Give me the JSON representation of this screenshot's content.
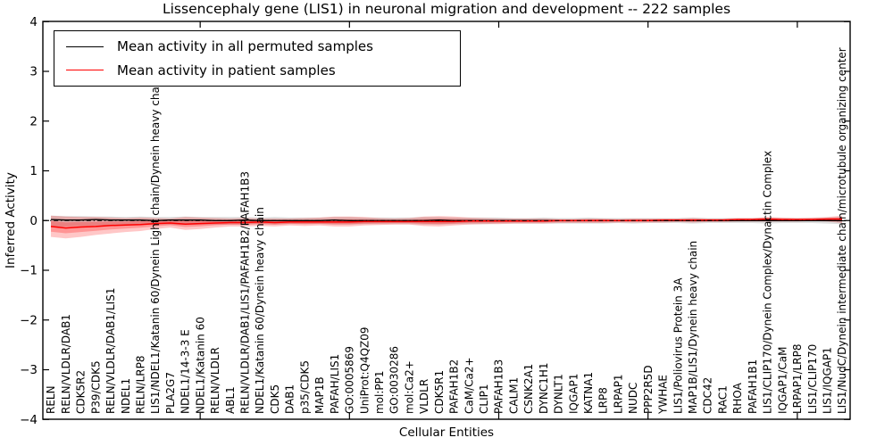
{
  "title": "Lissencephaly gene (LIS1) in neuronal migration and development -- 222 samples",
  "axes": {
    "x_label": "Cellular Entities",
    "y_label": "Inferred Activity",
    "y_ticks": [
      "4",
      "3",
      "2",
      "1",
      "0",
      "−1",
      "−2",
      "−3",
      "−4"
    ],
    "y_tick_values": [
      4,
      3,
      2,
      1,
      0,
      -1,
      -2,
      -3,
      -4
    ]
  },
  "legend": {
    "items": [
      {
        "label": "Mean activity in all permuted samples",
        "color": "#000000"
      },
      {
        "label": "Mean activity in patient samples",
        "color": "#ff0000"
      }
    ]
  },
  "colors": {
    "permuted_line": "#000000",
    "permuted_band": "#8a8a8a",
    "patient_line": "#ff0000",
    "patient_band": "#ff0000",
    "frame": "#000000",
    "zero_line": "#000000"
  },
  "chart_data": {
    "type": "line",
    "title": "Lissencephaly gene (LIS1) in neuronal migration and development -- 222 samples",
    "xlabel": "Cellular Entities",
    "ylabel": "Inferred Activity",
    "ylim": [
      -4,
      4
    ],
    "grid": false,
    "legend_position": "upper left",
    "zero_reference_line": 0,
    "top_axis_tick_indices": [
      10,
      20,
      30,
      40,
      50
    ],
    "categories": [
      "RELN",
      "RELN/VLDLR/DAB1",
      "CDK5R2",
      "P39/CDK5",
      "RELN/VLDLR/DAB1/LIS1",
      "NDEL1",
      "RELN/LRP8",
      "LIS1/NDEL1/Katanin 60/Dynein Light chain/Dynein heavy chain",
      "PLA2G7",
      "NDEL1/14-3-3 E",
      "NDEL1/Katanin 60",
      "RELN/VLDLR",
      "ABL1",
      "RELN/VLDLR/DAB1/LIS1/PAFAH1B2/PAFAH1B3",
      "NDEL1/Katanin 60/Dynein heavy chain",
      "CDK5",
      "DAB1",
      "p35/CDK5",
      "MAP1B",
      "PAFAH/LIS1",
      "GO:0005869",
      "UniProt:Q4QZ09",
      "mol:PP1",
      "GO:0030286",
      "mol:Ca2+",
      "VLDLR",
      "CDK5R1",
      "PAFAH1B2",
      "CaM/Ca2+",
      "CLIP1",
      "PAFAH1B3",
      "CALM1",
      "CSNK2A1",
      "DYNC1H1",
      "DYNLT1",
      "IQGAP1",
      "KATNA1",
      "LRP8",
      "LRPAP1",
      "NUDC",
      "PPP2R5D",
      "YWHAE",
      "LIS1/Poliovirus Protein 3A",
      "MAP1B/LIS1/Dynein heavy chain",
      "CDC42",
      "RAC1",
      "RHOA",
      "PAFAH1B1",
      "LIS1/CLIP170/Dynein Complex/Dynactin Complex",
      "IQGAP1/CaM",
      "LRPAP1/LRP8",
      "LIS1/CLIP170",
      "LIS1/IQGAP1",
      "LIS1/NudC/Dynein intermediate chain/microtubule organizing center"
    ],
    "series": [
      {
        "name": "Mean activity in all permuted samples",
        "color": "#000000",
        "values": [
          0.02,
          0.01,
          0.01,
          0.02,
          0.01,
          0.01,
          0.01,
          0,
          0.01,
          0.01,
          0.01,
          0,
          0,
          0.01,
          0,
          0,
          0,
          0,
          0,
          0.01,
          0,
          0,
          0,
          0,
          0,
          0,
          0.01,
          0,
          0,
          0,
          0,
          0,
          0,
          0,
          0,
          0,
          0,
          0,
          0,
          0,
          0,
          0,
          0,
          0,
          0,
          0,
          0,
          0,
          0,
          0,
          0,
          0,
          0,
          0
        ],
        "band_upper": [
          0.1,
          0.09,
          0.09,
          0.08,
          0.08,
          0.07,
          0.08,
          0.07,
          0.07,
          0.08,
          0.07,
          0.07,
          0.07,
          0.07,
          0.06,
          0.07,
          0.06,
          0.06,
          0.06,
          0.07,
          0.07,
          0.06,
          0.06,
          0.06,
          0.06,
          0.07,
          0.07,
          0.06,
          0.06,
          0.06,
          0.06,
          0.05,
          0.05,
          0.06,
          0.05,
          0.05,
          0.06,
          0.05,
          0.05,
          0.05,
          0.05,
          0.05,
          0.05,
          0.06,
          0.05,
          0.05,
          0.05,
          0.05,
          0.06,
          0.05,
          0.05,
          0.05,
          0.06,
          0.07
        ],
        "band_lower": [
          -0.13,
          -0.12,
          -0.11,
          -0.1,
          -0.1,
          -0.09,
          -0.09,
          -0.08,
          -0.08,
          -0.09,
          -0.08,
          -0.08,
          -0.08,
          -0.08,
          -0.07,
          -0.08,
          -0.07,
          -0.07,
          -0.07,
          -0.08,
          -0.08,
          -0.07,
          -0.07,
          -0.07,
          -0.07,
          -0.08,
          -0.08,
          -0.07,
          -0.07,
          -0.07,
          -0.06,
          -0.06,
          -0.06,
          -0.06,
          -0.06,
          -0.06,
          -0.06,
          -0.06,
          -0.05,
          -0.06,
          -0.05,
          -0.05,
          -0.05,
          -0.06,
          -0.05,
          -0.05,
          -0.05,
          -0.05,
          -0.06,
          -0.05,
          -0.05,
          -0.05,
          -0.06,
          -0.07
        ]
      },
      {
        "name": "Mean activity in patient samples",
        "color": "#ff0000",
        "values": [
          -0.12,
          -0.15,
          -0.13,
          -0.12,
          -0.1,
          -0.09,
          -0.08,
          -0.06,
          -0.05,
          -0.07,
          -0.06,
          -0.05,
          -0.04,
          -0.04,
          -0.03,
          -0.04,
          -0.03,
          -0.03,
          -0.03,
          -0.03,
          -0.03,
          -0.02,
          -0.02,
          -0.02,
          -0.02,
          -0.02,
          -0.02,
          -0.02,
          -0.01,
          -0.01,
          -0.01,
          -0.01,
          -0.01,
          -0.01,
          0,
          0,
          0,
          0,
          0,
          0,
          0,
          0.01,
          0.01,
          0.01,
          0.01,
          0.01,
          0.02,
          0.02,
          0.03,
          0.02,
          0.02,
          0.02,
          0.03,
          0.03
        ],
        "band_upper": [
          0.1,
          0.08,
          0.07,
          0.07,
          0.06,
          0.05,
          0.06,
          0.05,
          0.04,
          0.07,
          0.06,
          0.05,
          0.04,
          0.05,
          0.04,
          0.04,
          0.04,
          0.05,
          0.06,
          0.08,
          0.08,
          0.07,
          0.05,
          0.04,
          0.05,
          0.08,
          0.09,
          0.08,
          0.06,
          0.05,
          0.04,
          0.04,
          0.04,
          0.04,
          0.03,
          0.03,
          0.04,
          0.04,
          0.03,
          0.04,
          0.04,
          0.04,
          0.04,
          0.05,
          0.04,
          0.04,
          0.05,
          0.05,
          0.07,
          0.06,
          0.05,
          0.06,
          0.07,
          0.1
        ],
        "band_lower": [
          -0.33,
          -0.36,
          -0.33,
          -0.29,
          -0.26,
          -0.23,
          -0.21,
          -0.17,
          -0.14,
          -0.19,
          -0.17,
          -0.14,
          -0.12,
          -0.12,
          -0.11,
          -0.12,
          -0.1,
          -0.11,
          -0.1,
          -0.12,
          -0.12,
          -0.1,
          -0.09,
          -0.08,
          -0.08,
          -0.11,
          -0.12,
          -0.1,
          -0.08,
          -0.07,
          -0.07,
          -0.06,
          -0.06,
          -0.06,
          -0.05,
          -0.05,
          -0.05,
          -0.05,
          -0.04,
          -0.04,
          -0.04,
          -0.04,
          -0.03,
          -0.04,
          -0.03,
          -0.03,
          -0.02,
          -0.02,
          -0.02,
          -0.02,
          -0.02,
          -0.01,
          -0.02,
          -0.05
        ]
      }
    ]
  }
}
